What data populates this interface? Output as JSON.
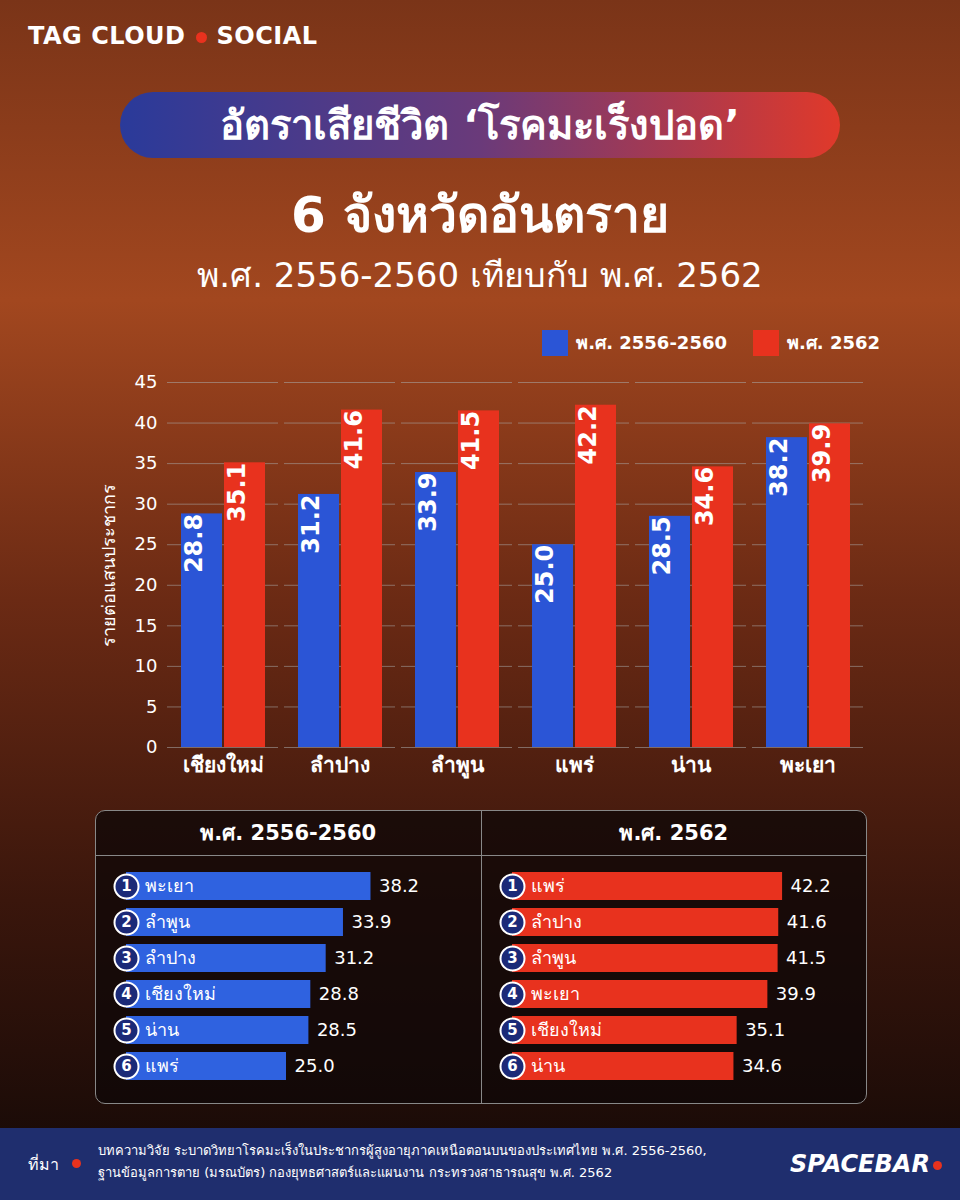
{
  "chart_data": [
    {
      "type": "bar",
      "header": [
        "TAG CLOUD",
        "SOCIAL"
      ],
      "title": "อัตราเสียชีวิต ‘โรคมะเร็งปอด’",
      "subtitle": [
        "6 จังหวัดอันตราย",
        "พ.ศ. 2556-2560 เทียบกับ พ.ศ. 2562"
      ],
      "categories": [
        "เชียงใหม่",
        "ลำปาง",
        "ลำพูน",
        "แพร่",
        "น่าน",
        "พะเยา"
      ],
      "series": [
        {
          "name": "พ.ศ. 2556-2560",
          "color": "#2b55d6",
          "values": [
            28.8,
            31.2,
            33.9,
            25.0,
            28.5,
            38.2
          ],
          "value_labels": [
            "28.8",
            "31.2",
            "33.9",
            "25.0",
            "28.5",
            "38.2"
          ]
        },
        {
          "name": "พ.ศ. 2562",
          "color": "#e8321e",
          "values": [
            35.1,
            41.6,
            41.5,
            42.2,
            34.6,
            39.9
          ]
        }
      ],
      "ylabel": "รายต่อแสนประชากร",
      "ylim": [
        0,
        45
      ],
      "yticks": [
        0,
        5,
        10,
        15,
        20,
        25,
        30,
        35,
        40,
        45
      ],
      "grid": true,
      "legend": "top-right",
      "data_labels": true,
      "source_label": "ที่มา",
      "source": [
        "บทความวิจัย ระบาดวิทยาโรคมะเร็งในประชากรผู้สูงอายุภาคเหนือตอนบนของประเทศไทย พ.ศ. 2556-2560,",
        "ฐานข้อมูลการตาย (มรณบัตร) กองยุทธศาสตร์และแผนงาน กระทรวงสาธารณสุข พ.ศ. 2562"
      ],
      "brand": "SPACEBAR"
    },
    {
      "type": "bar",
      "orientation": "horizontal",
      "title": "พ.ศ. 2556-2560",
      "ranks": [
        1,
        2,
        3,
        4,
        5,
        6
      ],
      "categories": [
        "พะเยา",
        "ลำพูน",
        "ลำปาง",
        "เชียงใหม่",
        "น่าน",
        "แพร่"
      ],
      "values": [
        38.2,
        33.9,
        31.2,
        28.8,
        28.5,
        25.0
      ],
      "value_labels": [
        "38.2",
        "33.9",
        "31.2",
        "28.8",
        "28.5",
        "25.0"
      ],
      "color": "#2f62e0",
      "xlim": [
        0,
        45
      ],
      "tick_labels": false,
      "data_labels": true
    },
    {
      "type": "bar",
      "orientation": "horizontal",
      "title": "พ.ศ. 2562",
      "ranks": [
        1,
        2,
        3,
        4,
        5,
        6
      ],
      "categories": [
        "แพร่",
        "ลำปาง",
        "ลำพูน",
        "พะเยา",
        "เชียงใหม่",
        "น่าน"
      ],
      "values": [
        42.2,
        41.6,
        41.5,
        39.9,
        35.1,
        34.6
      ],
      "color": "#e8321e",
      "xlim": [
        0,
        45
      ],
      "tick_labels": false,
      "data_labels": true
    }
  ]
}
